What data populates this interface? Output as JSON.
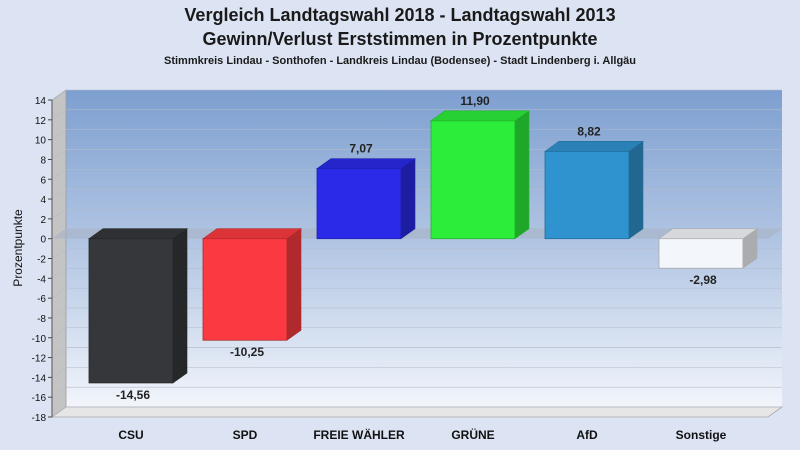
{
  "chart_data": {
    "type": "bar",
    "title": "Vergleich Landtagswahl 2018 - Landtagswahl 2013",
    "subtitle": "Gewinn/Verlust Erststimmen in Prozentpunkte",
    "subsubtitle": "Stimmkreis Lindau - Sonthofen - Landkreis Lindau (Bodensee) - Stadt Lindenberg i. Allgäu",
    "ylabel": "Prozentpunkte",
    "xlabel": "",
    "ylim": [
      -18,
      14
    ],
    "ytick_step": 2,
    "grid": true,
    "categories": [
      "CSU",
      "SPD",
      "FREIE WÄHLER",
      "GRÜNE",
      "AfD",
      "Sonstige"
    ],
    "values": [
      -14.56,
      -10.25,
      7.07,
      11.9,
      8.82,
      -2.98
    ],
    "value_labels": [
      "-14,56",
      "-10,25",
      "7,07",
      "11,90",
      "8,82",
      "-2,98"
    ],
    "colors": [
      "#35373a",
      "#fa3a40",
      "#2a2ae8",
      "#2cee3a",
      "#2f93cf",
      "#f3f6fa"
    ]
  }
}
